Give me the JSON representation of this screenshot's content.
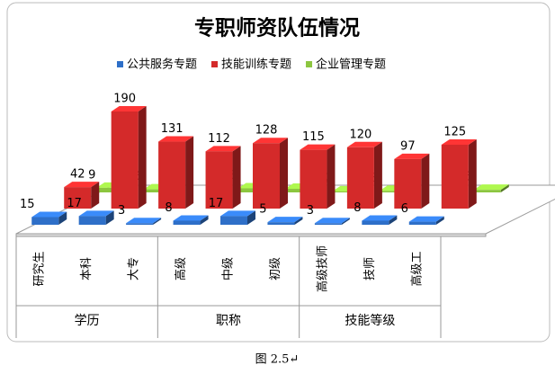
{
  "chart_data": {
    "type": "bar3d",
    "title": "专职师资队伍情况",
    "categories": [
      "研究生",
      "本科",
      "大专",
      "高级",
      "中级",
      "初级",
      "高级技师",
      "技师",
      "高级工"
    ],
    "groups": [
      {
        "name": "学历",
        "span": 3
      },
      {
        "name": "职称",
        "span": 3
      },
      {
        "name": "技能等级",
        "span": 3
      }
    ],
    "series": [
      {
        "name": "公共服务专题",
        "color": "#2e6fc8",
        "values": [
          15,
          17,
          3,
          8,
          17,
          5,
          3,
          8,
          6
        ]
      },
      {
        "name": "技能训练专题",
        "color": "#d42a2a",
        "values": [
          42,
          190,
          131,
          112,
          128,
          115,
          120,
          97,
          125
        ]
      },
      {
        "name": "企业管理专题",
        "color": "#8cc63f",
        "values": [
          9,
          6,
          null,
          8,
          7,
          2,
          3,
          null,
          5
        ]
      }
    ],
    "legend": "top",
    "caption": "图 2.5↵"
  }
}
